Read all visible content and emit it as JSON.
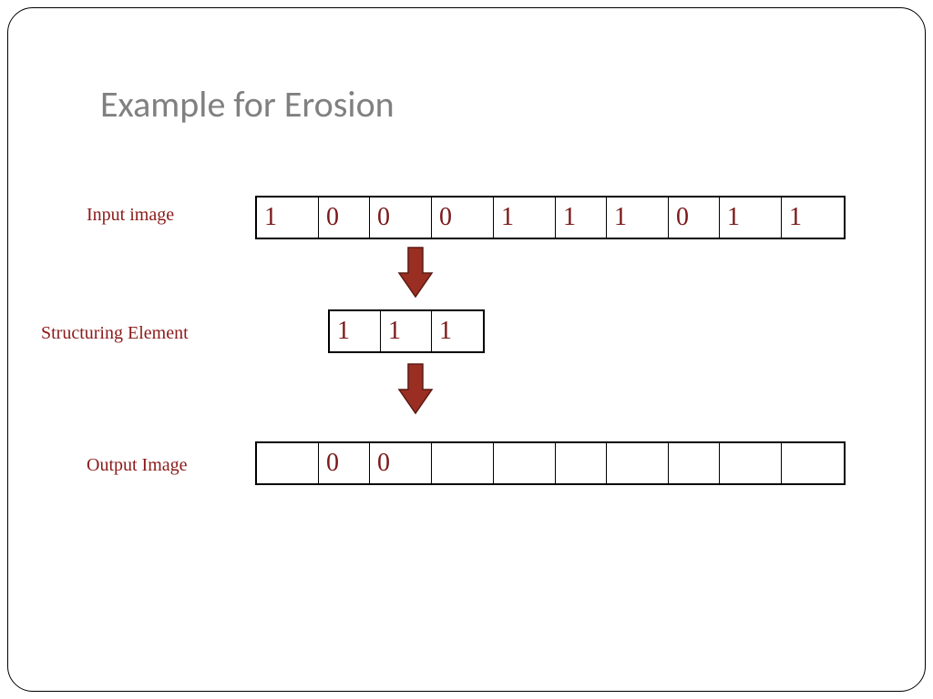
{
  "title": "Example for Erosion",
  "labels": {
    "input": "Input image",
    "struct": "Structuring Element",
    "output": "Output Image"
  },
  "rows": {
    "input": {
      "widths": [
        68,
        56,
        68,
        68,
        68,
        56,
        68,
        56,
        68,
        68
      ],
      "values": [
        "1",
        "0",
        "0",
        "0",
        "1",
        "1",
        "1",
        "0",
        "1",
        "1"
      ]
    },
    "struct": {
      "widths": [
        56,
        56,
        56
      ],
      "values": [
        "1",
        "1",
        "1"
      ]
    },
    "output": {
      "widths": [
        68,
        56,
        68,
        68,
        68,
        56,
        68,
        56,
        68,
        68
      ],
      "values": [
        "",
        "0",
        "0",
        "",
        "",
        "",
        "",
        "",
        "",
        ""
      ]
    }
  },
  "colors": {
    "title": "#808080",
    "label": "#8b1a1a",
    "cellText": "#7a1818",
    "arrowFill": "#9a2e22",
    "arrowStroke": "#5c1a12",
    "border": "#000000",
    "background": "#ffffff"
  },
  "typography": {
    "titleFont": "Calibri, Arial, sans-serif",
    "titleSize": 40,
    "labelFont": "Garamond, Georgia, serif",
    "labelSize": 20,
    "cellFont": "Times New Roman, serif",
    "cellSize": 28
  },
  "arrow": {
    "width": 40,
    "height": 58
  }
}
